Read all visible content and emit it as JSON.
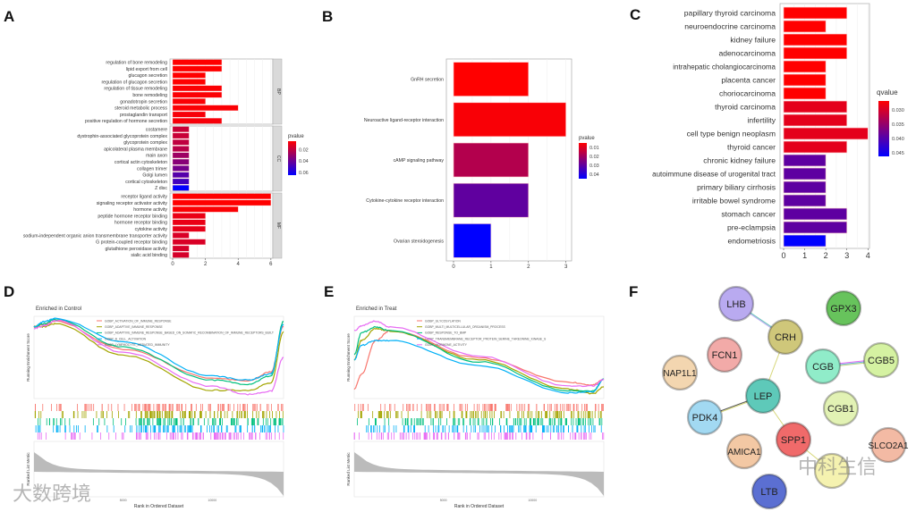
{
  "panel_labels": [
    "A",
    "B",
    "C",
    "D",
    "E",
    "F"
  ],
  "chart_data": [
    {
      "id": "A",
      "type": "bar",
      "orientation": "horizontal",
      "xlabel": "",
      "ylabel": "",
      "xlim": [
        0,
        6.5
      ],
      "xticks": [
        "0",
        "2",
        "4",
        "6"
      ],
      "legend": {
        "title": "pvalue",
        "ticks": [
          "0.02",
          "0.04",
          "0.06"
        ],
        "range": [
          0.005,
          0.065
        ],
        "placement": "right"
      },
      "facets": [
        {
          "name": "BP",
          "categories": [
            "regulation of bone remodeling",
            "lipid export from cell",
            "glucagon secretion",
            "regulation of glucagon secretion",
            "regulation of tissue remodeling",
            "bone remodeling",
            "gonadotropin secretion",
            "steroid metabolic process",
            "prostaglandin transport",
            "positive regulation of hormone secretion"
          ],
          "values": [
            3,
            3,
            2,
            2,
            3,
            3,
            2,
            4,
            2,
            3
          ],
          "pvalue": [
            0.005,
            0.005,
            0.005,
            0.005,
            0.006,
            0.006,
            0.006,
            0.006,
            0.007,
            0.007
          ]
        },
        {
          "name": "CC",
          "categories": [
            "costamere",
            "dystrophin-associated glycoprotein complex",
            "glycoprotein complex",
            "apicolateral plasma membrane",
            "main axon",
            "cortical actin cytoskeleton",
            "collagen trimer",
            "Golgi lumen",
            "cortical cytoskeleton",
            "Z disc"
          ],
          "values": [
            1,
            1,
            1,
            1,
            1,
            1,
            1,
            1,
            1,
            1
          ],
          "pvalue": [
            0.018,
            0.018,
            0.02,
            0.022,
            0.028,
            0.033,
            0.038,
            0.045,
            0.05,
            0.065
          ]
        },
        {
          "name": "MF",
          "categories": [
            "receptor ligand activity",
            "signaling receptor activator activity",
            "hormone activity",
            "peptide hormone receptor binding",
            "hormone receptor binding",
            "cytokine activity",
            "sodium-independent organic anion transmembrane transporter activity",
            "G protein-coupled receptor binding",
            "glutathione peroxidase activity",
            "sialic acid binding"
          ],
          "values": [
            6,
            6,
            4,
            2,
            2,
            2,
            1,
            2,
            1,
            1
          ],
          "pvalue": [
            0.005,
            0.005,
            0.006,
            0.01,
            0.01,
            0.011,
            0.014,
            0.014,
            0.015,
            0.015
          ]
        }
      ]
    },
    {
      "id": "B",
      "type": "bar",
      "orientation": "horizontal",
      "xlim": [
        0,
        3.2
      ],
      "xticks": [
        "0",
        "1",
        "2",
        "3"
      ],
      "legend": {
        "title": "pvalue",
        "ticks": [
          "0.01",
          "0.02",
          "0.03",
          "0.04"
        ],
        "range": [
          0.005,
          0.045
        ],
        "placement": "right"
      },
      "categories": [
        "GnRH secretion",
        "Neuroactive ligand-receptor interaction",
        "cAMP signaling pathway",
        "Cytokine-cytokine receptor interaction",
        "Ovarian steroidogenesis"
      ],
      "values": [
        2,
        3,
        2,
        2,
        1
      ],
      "pvalue": [
        0.005,
        0.006,
        0.017,
        0.03,
        0.045
      ]
    },
    {
      "id": "C",
      "type": "bar",
      "orientation": "horizontal",
      "xlim": [
        0,
        4.2
      ],
      "xticks": [
        "0",
        "1",
        "2",
        "3",
        "4"
      ],
      "legend": {
        "title": "qvalue",
        "ticks": [
          "0.030",
          "0.035",
          "0.040",
          "0.045"
        ],
        "range": [
          0.028,
          0.047
        ],
        "placement": "right"
      },
      "categories": [
        "papillary thyroid carcinoma",
        "neuroendocrine carcinoma",
        "kidney failure",
        "adenocarcinoma",
        "intrahepatic cholangiocarcinoma",
        "placenta cancer",
        "choriocarcinoma",
        "thyroid carcinoma",
        "infertility",
        "cell type benign neoplasm",
        "thyroid cancer",
        "chronic kidney failure",
        "autoimmune disease of urogenital tract",
        "primary biliary cirrhosis",
        "irritable bowel syndrome",
        "stomach cancer",
        "pre-eclampsia",
        "endometriosis"
      ],
      "values": [
        3,
        2,
        3,
        3,
        2,
        2,
        2,
        3,
        3,
        4,
        3,
        2,
        2,
        2,
        2,
        3,
        3,
        2
      ],
      "qvalue": [
        0.028,
        0.028,
        0.028,
        0.028,
        0.028,
        0.028,
        0.028,
        0.03,
        0.03,
        0.03,
        0.03,
        0.04,
        0.04,
        0.04,
        0.04,
        0.04,
        0.04,
        0.047
      ]
    },
    {
      "id": "D",
      "type": "line",
      "title": "Enriched in Control",
      "ylabel": "Running Enrichment Score",
      "ylabel2": "Ranked List Metric",
      "xlabel": "Rank in Ordered Dataset",
      "xticks": [
        "5000",
        "10000"
      ],
      "xlim": [
        0,
        14000
      ],
      "ylim": [
        -0.7,
        0.1
      ],
      "series": [
        {
          "name": "GOBP_ACTIVATION_OF_IMMUNE_RESPONSE",
          "color": "#f8766d",
          "points": [
            [
              0,
              0
            ],
            [
              600,
              0.02
            ],
            [
              1200,
              0.05
            ],
            [
              5000,
              -0.22
            ],
            [
              10000,
              -0.5
            ],
            [
              12000,
              -0.53
            ],
            [
              13300,
              -0.44
            ],
            [
              14000,
              0.0
            ]
          ]
        },
        {
          "name": "GOBP_ADAPTIVE_IMMUNE_RESPONSE",
          "color": "#a3a500",
          "points": [
            [
              0,
              0
            ],
            [
              600,
              0.0
            ],
            [
              1200,
              0.03
            ],
            [
              5000,
              -0.28
            ],
            [
              10000,
              -0.62
            ],
            [
              12000,
              -0.62
            ],
            [
              13300,
              -0.55
            ],
            [
              14000,
              -0.05
            ]
          ]
        },
        {
          "name": "GOBP_ADAPTIVE_IMMUNE_RESPONSE_BASED_ON_SOMATIC_RECOMBINATION_OF_IMMUNE_RECEPTORS_BUILT",
          "color": "#00bf7d",
          "points": [
            [
              0,
              0
            ],
            [
              600,
              0.03
            ],
            [
              1200,
              0.07
            ],
            [
              5000,
              -0.2
            ],
            [
              10000,
              -0.52
            ],
            [
              12000,
              -0.56
            ],
            [
              13300,
              -0.48
            ],
            [
              14000,
              0.05
            ]
          ]
        },
        {
          "name": "GOBP_B_CELL_ACTIVATION",
          "color": "#00b0f6",
          "points": [
            [
              0,
              0
            ],
            [
              600,
              0.05
            ],
            [
              1200,
              0.08
            ],
            [
              5000,
              -0.15
            ],
            [
              10000,
              -0.48
            ],
            [
              12000,
              -0.52
            ],
            [
              13300,
              -0.46
            ],
            [
              14000,
              0.02
            ]
          ]
        },
        {
          "name": "GOBP_LYMPHOCYTE_MEDIATED_IMMUNITY",
          "color": "#e76bf3",
          "points": [
            [
              0,
              -0.02
            ],
            [
              600,
              0.01
            ],
            [
              1200,
              0.06
            ],
            [
              5000,
              -0.25
            ],
            [
              10000,
              -0.58
            ],
            [
              12000,
              -0.66
            ],
            [
              13300,
              -0.63
            ],
            [
              14000,
              -0.3
            ]
          ]
        }
      ]
    },
    {
      "id": "E",
      "type": "line",
      "title": "Enriched in Treat",
      "ylabel": "Running Enrichment Score",
      "ylabel2": "Ranked List Metric",
      "xlabel": "Rank in Ordered Dataset",
      "xticks": [
        "5000",
        "10000"
      ],
      "xlim": [
        0,
        14000
      ],
      "ylim": [
        -0.1,
        0.75
      ],
      "series": [
        {
          "name": "GOBP_GLYCOSYLATION",
          "color": "#f8766d",
          "points": [
            [
              0,
              0.0
            ],
            [
              400,
              0.15
            ],
            [
              1200,
              0.5
            ],
            [
              2000,
              0.6
            ],
            [
              7000,
              0.32
            ],
            [
              12000,
              0.07
            ],
            [
              13400,
              0.04
            ],
            [
              14000,
              0.1
            ]
          ]
        },
        {
          "name": "GOBP_MULTI_MULTICELLULAR_ORGANISM_PROCESS",
          "color": "#a3a500",
          "points": [
            [
              0,
              0.3
            ],
            [
              400,
              0.5
            ],
            [
              1200,
              0.62
            ],
            [
              2000,
              0.6
            ],
            [
              7000,
              0.3
            ],
            [
              12000,
              0.0
            ],
            [
              13400,
              -0.05
            ],
            [
              14000,
              0.02
            ]
          ]
        },
        {
          "name": "GOBP_RESPONSE_TO_BMP",
          "color": "#00bf7d",
          "points": [
            [
              0,
              0.35
            ],
            [
              400,
              0.58
            ],
            [
              1200,
              0.64
            ],
            [
              2000,
              0.6
            ],
            [
              7000,
              0.28
            ],
            [
              12000,
              -0.02
            ],
            [
              13400,
              -0.02
            ],
            [
              14000,
              0.1
            ]
          ]
        },
        {
          "name": "GOBP_TRANSMEMBRANE_RECEPTOR_PROTEIN_SERINE_THREONINE_KINASE_S",
          "color": "#00b0f6",
          "points": [
            [
              0,
              0.3
            ],
            [
              400,
              0.45
            ],
            [
              1200,
              0.5
            ],
            [
              2000,
              0.5
            ],
            [
              7000,
              0.24
            ],
            [
              12000,
              -0.04
            ],
            [
              13400,
              -0.03
            ],
            [
              14000,
              0.1
            ]
          ]
        },
        {
          "name": "GOMF_HORMONE_ACTIVITY",
          "color": "#e76bf3",
          "points": [
            [
              0,
              0.6
            ],
            [
              400,
              0.65
            ],
            [
              1200,
              0.7
            ],
            [
              2000,
              0.64
            ],
            [
              7000,
              0.34
            ],
            [
              12000,
              0.03
            ],
            [
              13400,
              0.03
            ],
            [
              14000,
              0.1
            ]
          ]
        }
      ]
    },
    {
      "id": "F",
      "type": "network",
      "nodes": [
        {
          "id": "LHB",
          "color": "#b9aaf0"
        },
        {
          "id": "GPX3",
          "color": "#67c35c"
        },
        {
          "id": "CRH",
          "color": "#cfc77a"
        },
        {
          "id": "FCN1",
          "color": "#f2aaa8"
        },
        {
          "id": "CGB5",
          "color": "#d5f2a2"
        },
        {
          "id": "CGB",
          "color": "#90ecc9"
        },
        {
          "id": "NAP1L1",
          "color": "#f3d6b0"
        },
        {
          "id": "LEP",
          "color": "#5ec9b9"
        },
        {
          "id": "CGB1",
          "color": "#e2f2b4"
        },
        {
          "id": "PDK4",
          "color": "#a2d9f2"
        },
        {
          "id": "SPP1",
          "color": "#f06a6a"
        },
        {
          "id": "AMICA1",
          "color": "#f3c8a4"
        },
        {
          "id": "SLCO2A1",
          "color": "#f3baa4"
        },
        {
          "id": "",
          "color": "#f5f2b0"
        },
        {
          "id": "LTB",
          "color": "#5b6fd2"
        }
      ],
      "edges": [
        [
          "LHB",
          "CRH"
        ],
        [
          "CRH",
          "LEP"
        ],
        [
          "LEP",
          "PDK4"
        ],
        [
          "LEP",
          "SPP1"
        ],
        [
          "SPP1",
          ""
        ],
        [
          "CGB",
          "CGB5"
        ]
      ]
    }
  ],
  "watermarks": [
    "大数跨境",
    "中科生信"
  ]
}
